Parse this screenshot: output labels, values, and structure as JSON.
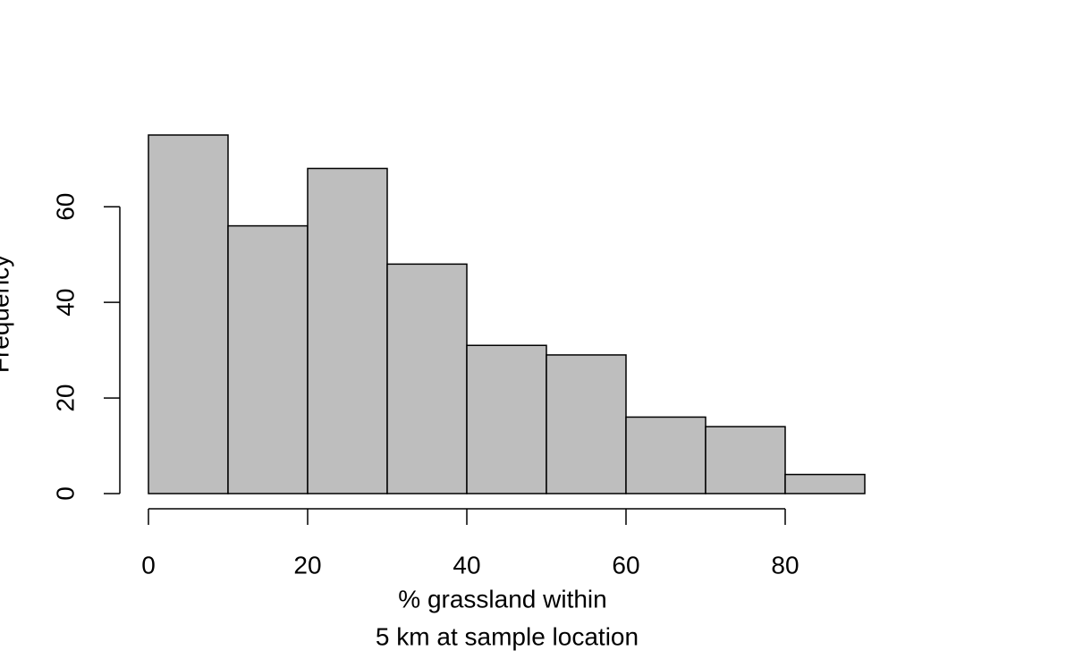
{
  "chart_data": {
    "type": "histogram",
    "bins": [
      0,
      10,
      20,
      30,
      40,
      50,
      60,
      70,
      80,
      90
    ],
    "values": [
      75,
      56,
      68,
      48,
      31,
      29,
      16,
      14,
      4
    ],
    "color": "#bebebe",
    "xlim": [
      0,
      90
    ],
    "xticks": [
      0,
      20,
      40,
      60,
      80
    ],
    "ylim": [
      0,
      75
    ],
    "yticks": [
      0,
      20,
      40,
      60
    ],
    "xlabel": [
      "% grassland within",
      "5 km at sample location"
    ],
    "ylabel": "Frequency"
  }
}
